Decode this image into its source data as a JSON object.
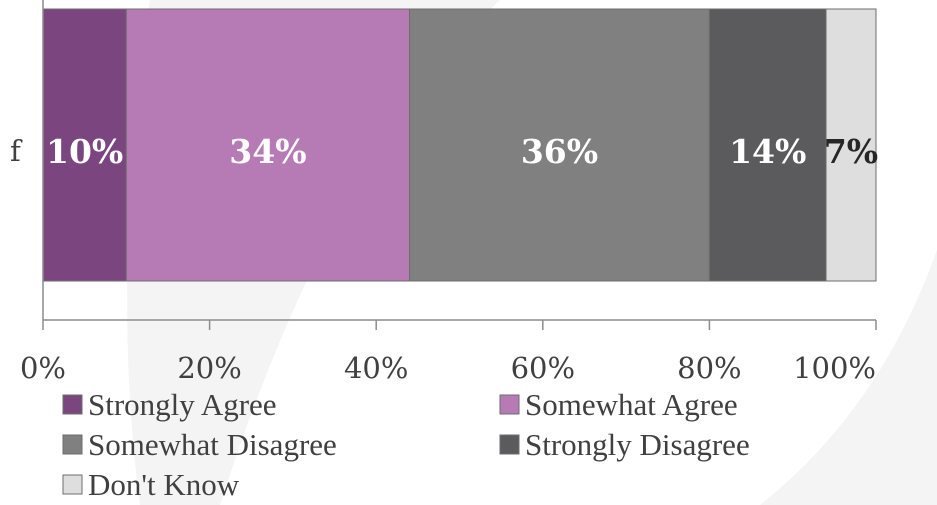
{
  "chart_data": {
    "type": "bar",
    "orientation": "horizontal",
    "stacked": true,
    "categories": [
      "f"
    ],
    "series": [
      {
        "name": "Strongly Agree",
        "values": [
          10
        ],
        "label": "10%",
        "color": "#7b4580",
        "label_color": "#ffffff"
      },
      {
        "name": "Somewhat Agree",
        "values": [
          34
        ],
        "label": "34%",
        "color": "#b67ab5",
        "label_color": "#ffffff"
      },
      {
        "name": "Somewhat Disagree",
        "values": [
          36
        ],
        "label": "36%",
        "color": "#808080",
        "label_color": "#ffffff"
      },
      {
        "name": "Strongly Disagree",
        "values": [
          14
        ],
        "label": "14%",
        "color": "#5b5b5d",
        "label_color": "#ffffff"
      },
      {
        "name": "Don't Know",
        "values": [
          7
        ],
        "label": "7%",
        "color": "#dedede",
        "label_color": "#262626"
      }
    ],
    "xlim": [
      0,
      100
    ],
    "xticks": [
      "0%",
      "20%",
      "40%",
      "60%",
      "80%",
      "100%"
    ],
    "grid": false,
    "legend_position": "bottom"
  }
}
